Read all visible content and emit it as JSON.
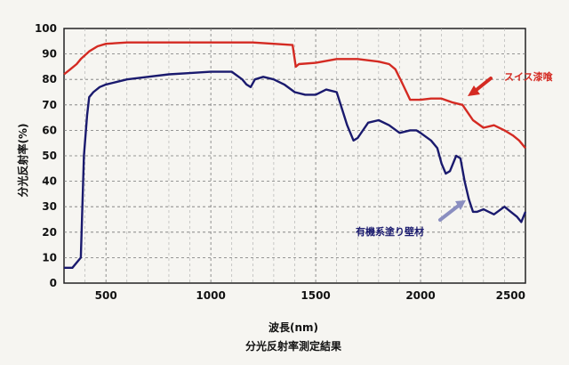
{
  "chart_data": {
    "type": "line",
    "title": "分光反射率測定結果",
    "xlabel": "波長(nm)",
    "ylabel": "分光反射率(%)",
    "xlim": [
      300,
      2500
    ],
    "ylim": [
      0,
      100
    ],
    "x_ticks": [
      "500",
      "1000",
      "1500",
      "2000",
      "2500"
    ],
    "x_tick_values": [
      500,
      1000,
      1500,
      2000,
      2500
    ],
    "y_ticks": [
      "0",
      "10",
      "20",
      "30",
      "40",
      "50",
      "60",
      "70",
      "80",
      "90",
      "100"
    ],
    "y_tick_values": [
      0,
      10,
      20,
      30,
      40,
      50,
      60,
      70,
      80,
      90,
      100
    ],
    "grid": true,
    "series": [
      {
        "name": "スイス漆喰",
        "color": "#d42a22",
        "x": [
          300,
          330,
          360,
          380,
          420,
          460,
          500,
          600,
          800,
          1000,
          1200,
          1300,
          1390,
          1405,
          1420,
          1500,
          1600,
          1700,
          1800,
          1850,
          1880,
          1910,
          1950,
          2000,
          2050,
          2100,
          2150,
          2200,
          2250,
          2300,
          2350,
          2400,
          2440,
          2470,
          2500
        ],
        "y": [
          82,
          84,
          86,
          88,
          91,
          93,
          94,
          94.5,
          94.5,
          94.5,
          94.5,
          94,
          93.5,
          85,
          86,
          86.5,
          88,
          88,
          87,
          86,
          84,
          79,
          72,
          72,
          72.5,
          72.5,
          71,
          70,
          64,
          61,
          62,
          60,
          58,
          56,
          53
        ]
      },
      {
        "name": "有機系塗り壁材",
        "color": "#1a1a6e",
        "x": [
          300,
          340,
          380,
          395,
          410,
          420,
          440,
          470,
          500,
          550,
          600,
          700,
          800,
          900,
          1000,
          1100,
          1150,
          1170,
          1190,
          1210,
          1250,
          1300,
          1350,
          1400,
          1450,
          1500,
          1550,
          1600,
          1650,
          1680,
          1700,
          1750,
          1800,
          1850,
          1900,
          1950,
          1980,
          2000,
          2050,
          2080,
          2100,
          2120,
          2140,
          2170,
          2190,
          2210,
          2230,
          2250,
          2270,
          2300,
          2350,
          2400,
          2430,
          2460,
          2480,
          2500
        ],
        "y": [
          6,
          6,
          10,
          50,
          66,
          73,
          75,
          77,
          78,
          79,
          80,
          81,
          82,
          82.5,
          83,
          83,
          80,
          78,
          77,
          80,
          81,
          80,
          78,
          75,
          74,
          74,
          76,
          75,
          62,
          56,
          57,
          63,
          64,
          62,
          59,
          60,
          60,
          59,
          56,
          53,
          47,
          43,
          44,
          50,
          49,
          40,
          33,
          28,
          28,
          29,
          27,
          30,
          28,
          26,
          24,
          28
        ]
      }
    ],
    "annotations": [
      {
        "text": "スイス漆喰",
        "color": "#d42a22"
      },
      {
        "text": "有機系塗り壁材",
        "color": "#1a1a6e"
      }
    ]
  }
}
